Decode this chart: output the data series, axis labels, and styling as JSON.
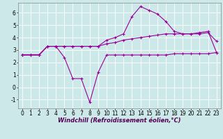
{
  "x": [
    0,
    1,
    2,
    3,
    4,
    5,
    6,
    7,
    8,
    9,
    10,
    11,
    12,
    13,
    14,
    15,
    16,
    17,
    18,
    19,
    20,
    21,
    22,
    23
  ],
  "line1": [
    2.6,
    2.6,
    2.6,
    3.3,
    3.3,
    2.4,
    0.7,
    0.7,
    -1.2,
    1.2,
    2.6,
    2.6,
    2.6,
    2.6,
    2.6,
    2.6,
    2.6,
    2.6,
    2.7,
    2.7,
    2.7,
    2.7,
    2.7,
    2.8
  ],
  "line2": [
    2.6,
    2.6,
    2.6,
    3.3,
    3.3,
    3.3,
    3.3,
    3.3,
    3.3,
    3.3,
    3.5,
    3.6,
    3.8,
    3.9,
    4.0,
    4.1,
    4.2,
    4.3,
    4.3,
    4.3,
    4.3,
    4.3,
    4.4,
    3.7
  ],
  "line3": [
    2.6,
    2.6,
    2.6,
    3.3,
    3.3,
    3.3,
    3.3,
    3.3,
    3.3,
    3.3,
    3.8,
    4.0,
    4.3,
    5.7,
    6.5,
    6.2,
    5.9,
    5.3,
    4.5,
    4.3,
    4.3,
    4.4,
    4.5,
    2.8
  ],
  "bg_color": "#cce8e8",
  "grid_color": "#ffffff",
  "line_color": "#990099",
  "xlabel": "Windchill (Refroidissement éolien,°C)",
  "xlim": [
    -0.5,
    23.5
  ],
  "ylim": [
    -1.7,
    6.8
  ],
  "yticks": [
    -1,
    0,
    1,
    2,
    3,
    4,
    5,
    6
  ],
  "xticks": [
    0,
    1,
    2,
    3,
    4,
    5,
    6,
    7,
    8,
    9,
    10,
    11,
    12,
    13,
    14,
    15,
    16,
    17,
    18,
    19,
    20,
    21,
    22,
    23
  ],
  "xlabel_fontsize": 6.0,
  "tick_fontsize": 5.5,
  "marker": "+",
  "linewidth": 0.8,
  "markersize": 3.5,
  "markeredgewidth": 0.8
}
